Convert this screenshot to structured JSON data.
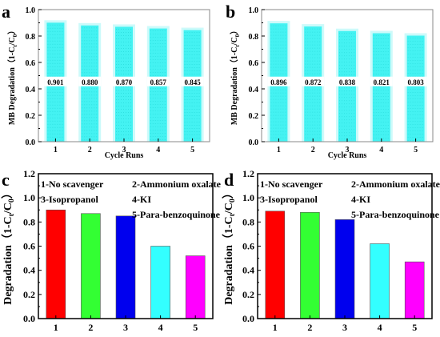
{
  "chart_data": [
    {
      "panel_letter": "a",
      "type": "bar",
      "categories": [
        "1",
        "2",
        "3",
        "4",
        "5"
      ],
      "values": [
        0.901,
        0.88,
        0.87,
        0.857,
        0.845
      ],
      "value_labels": [
        "0.901",
        "0.880",
        "0.870",
        "0.857",
        "0.845"
      ],
      "xlabel": "Cycle Runs",
      "ylabel": "MB Degradation（1-C",
      "ylabel_sub": "t",
      "ylabel_mid": "/C",
      "ylabel_sub2": "0",
      "ylabel_end": "）",
      "ylim": [
        0,
        1.0
      ],
      "yticks": [
        "0.0",
        "0.2",
        "0.4",
        "0.6",
        "0.8",
        "1.0"
      ],
      "grid": false,
      "color": "#44f2f2"
    },
    {
      "panel_letter": "b",
      "type": "bar",
      "categories": [
        "1",
        "2",
        "3",
        "4",
        "5"
      ],
      "values": [
        0.896,
        0.872,
        0.838,
        0.821,
        0.803
      ],
      "value_labels": [
        "0.896",
        "0.872",
        "0.838",
        "0.821",
        "0.803"
      ],
      "xlabel": "Cycle Runs",
      "ylabel": "MB Degradation（1-C",
      "ylabel_sub": "t",
      "ylabel_mid": "/C",
      "ylabel_sub2": "0",
      "ylabel_end": "）",
      "ylim": [
        0,
        1.0
      ],
      "yticks": [
        "0.0",
        "0.2",
        "0.4",
        "0.6",
        "0.8",
        "1.0"
      ],
      "grid": false,
      "color": "#44f2f2"
    },
    {
      "panel_letter": "c",
      "type": "bar",
      "categories": [
        "1",
        "2",
        "3",
        "4",
        "5"
      ],
      "values": [
        0.9,
        0.87,
        0.85,
        0.6,
        0.52
      ],
      "colors": [
        "#ff0000",
        "#33ff33",
        "#0000ee",
        "#33ffff",
        "#ff00ff"
      ],
      "legend": [
        "1-No scavenger",
        "2-Ammonium oxalate",
        "3-Isopropanol",
        "4-KI",
        "5-Para-benzoquinone"
      ],
      "xlabel": "",
      "ylabel": "Degradation（1-C",
      "ylabel_sub": "t",
      "ylabel_mid": "/C",
      "ylabel_sub2": "0",
      "ylabel_end": "）",
      "ylim": [
        0,
        1.2
      ],
      "yticks": [
        "0.0",
        "0.2",
        "0.4",
        "0.6",
        "0.8",
        "1.0",
        "1.2"
      ],
      "grid": false
    },
    {
      "panel_letter": "d",
      "type": "bar",
      "categories": [
        "1",
        "2",
        "3",
        "4",
        "5"
      ],
      "values": [
        0.89,
        0.88,
        0.82,
        0.62,
        0.47
      ],
      "colors": [
        "#ff0000",
        "#33ff33",
        "#0000ee",
        "#33ffff",
        "#ff00ff"
      ],
      "legend": [
        "1-No scavenger",
        "2-Ammonium oxalate",
        "3-Isopropanol",
        "4-KI",
        "5-Para-benzoquinone"
      ],
      "xlabel": "",
      "ylabel": "Degradation（1-C",
      "ylabel_sub": "t",
      "ylabel_mid": "/C",
      "ylabel_sub2": "0",
      "ylabel_end": "）",
      "ylim": [
        0,
        1.2
      ],
      "yticks": [
        "0.0",
        "0.2",
        "0.4",
        "0.6",
        "0.8",
        "1.0",
        "1.2"
      ],
      "grid": false
    }
  ]
}
